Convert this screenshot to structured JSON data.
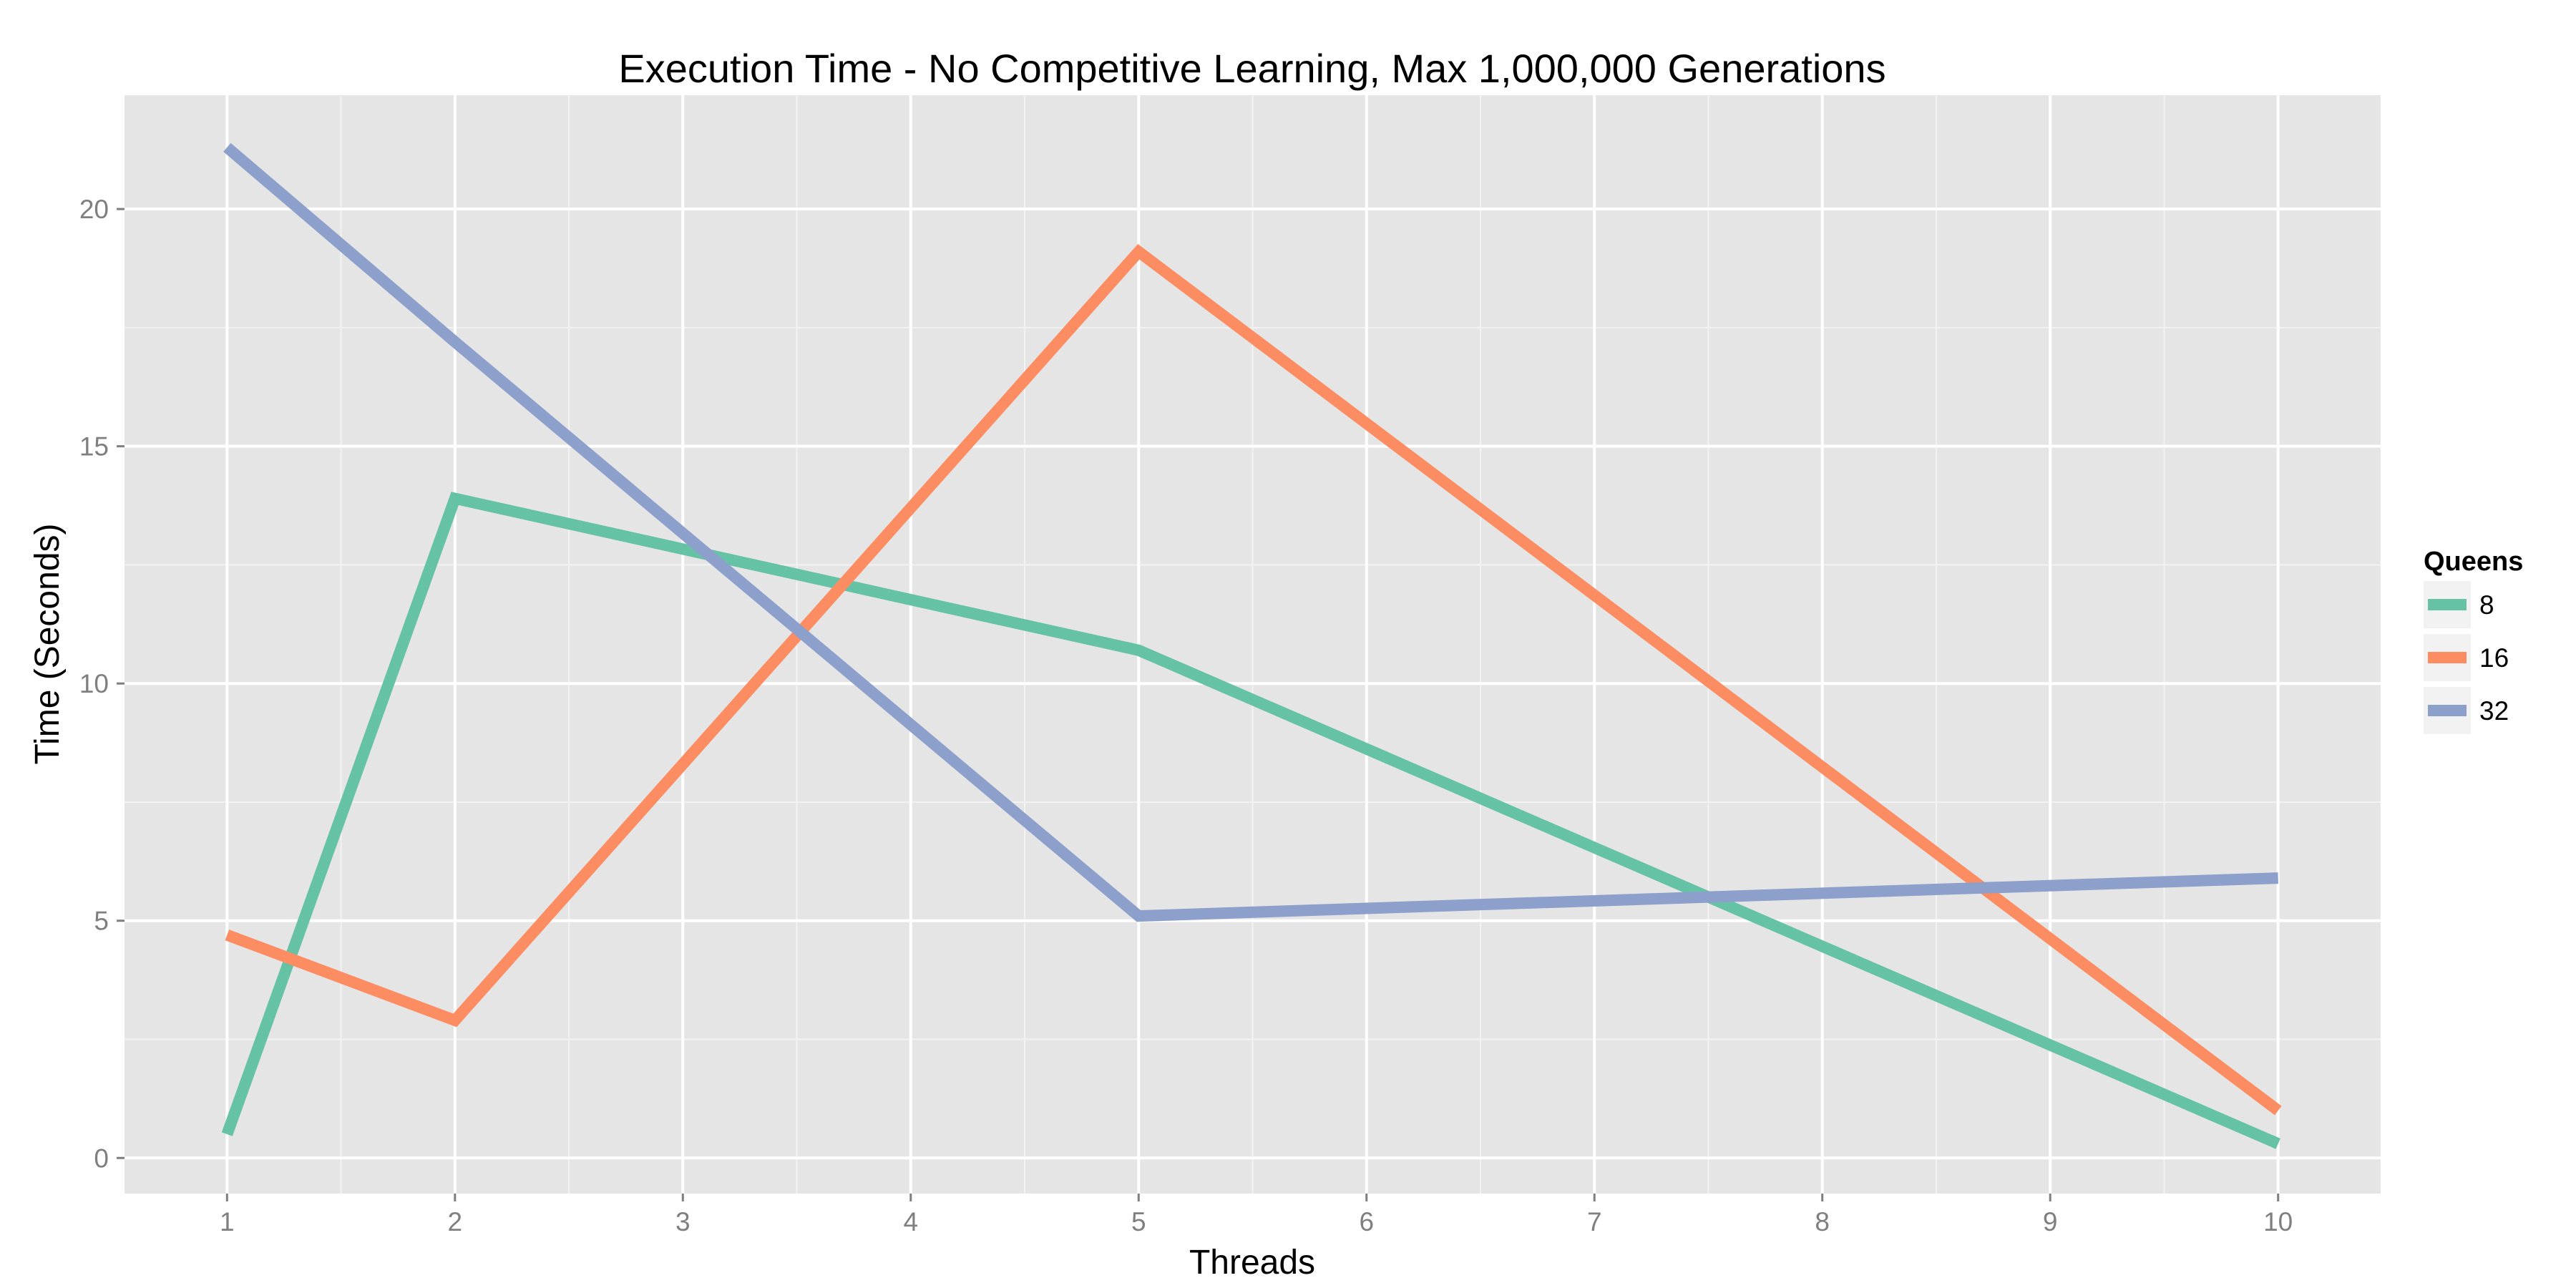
{
  "chart_data": {
    "type": "line",
    "title": "Execution Time - No Competitive Learning, Max 1,000,000 Generations",
    "xlabel": "Threads",
    "ylabel": "Time (Seconds)",
    "x": [
      1,
      2,
      5,
      10
    ],
    "x_ticks": [
      "1",
      "2",
      "3",
      "4",
      "5",
      "6",
      "7",
      "8",
      "9",
      "10"
    ],
    "y_ticks": [
      "0",
      "5",
      "10",
      "15",
      "20"
    ],
    "xlim": [
      0.55,
      10.45
    ],
    "ylim": [
      -0.75,
      22.4
    ],
    "grid": true,
    "legend": {
      "title": "Queens",
      "position": "right"
    },
    "series": [
      {
        "name": "8",
        "color": "#66c2a5",
        "values": [
          0.5,
          13.9,
          10.7,
          0.3
        ]
      },
      {
        "name": "16",
        "color": "#fc8d62",
        "values": [
          4.7,
          2.9,
          19.1,
          1.0
        ]
      },
      {
        "name": "32",
        "color": "#8da0cb",
        "values": [
          21.3,
          17.2,
          5.1,
          5.9
        ]
      }
    ]
  }
}
